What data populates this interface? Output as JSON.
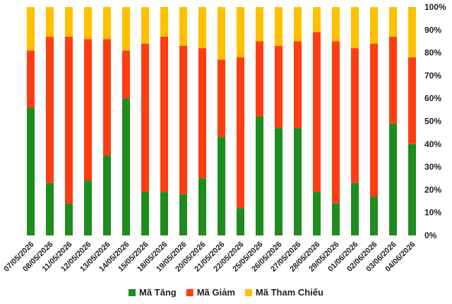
{
  "chart_data": {
    "type": "bar",
    "stacked": true,
    "categories": [
      "07/05/2026",
      "08/05/2026",
      "11/05/2026",
      "12/05/2026",
      "13/05/2026",
      "14/05/2026",
      "15/05/2026",
      "18/05/2026",
      "19/05/2026",
      "20/05/2026",
      "21/05/2026",
      "22/05/2026",
      "25/05/2026",
      "26/05/2026",
      "27/05/2026",
      "28/05/2026",
      "29/05/2026",
      "01/06/2026",
      "02/06/2026",
      "03/06/2026",
      "04/06/2026"
    ],
    "series": [
      {
        "name": "Mã Tăng",
        "color": "#1e8c1e",
        "values": [
          56,
          23,
          14,
          24,
          35,
          60,
          19,
          19,
          18,
          25,
          43,
          12,
          52,
          47,
          47,
          19,
          14,
          23,
          17,
          49,
          40
        ]
      },
      {
        "name": "Mã Giảm",
        "color": "#ff3d12",
        "values": [
          25,
          64,
          73,
          62,
          51,
          21,
          65,
          68,
          65,
          57,
          34,
          66,
          33,
          36,
          38,
          70,
          71,
          59,
          67,
          38,
          38
        ]
      },
      {
        "name": "Mã Tham Chiếu",
        "color": "#ffc000",
        "values": [
          19,
          13,
          13,
          14,
          14,
          19,
          16,
          13,
          17,
          18,
          23,
          22,
          15,
          17,
          15,
          11,
          15,
          18,
          16,
          13,
          22
        ]
      }
    ],
    "yticks": [
      "0%",
      "10%",
      "20%",
      "30%",
      "40%",
      "50%",
      "60%",
      "70%",
      "80%",
      "90%",
      "100%"
    ],
    "ylim": [
      0,
      100
    ],
    "legend_position": "bottom-center",
    "grid": false,
    "title": "",
    "xlabel": "",
    "ylabel": ""
  }
}
